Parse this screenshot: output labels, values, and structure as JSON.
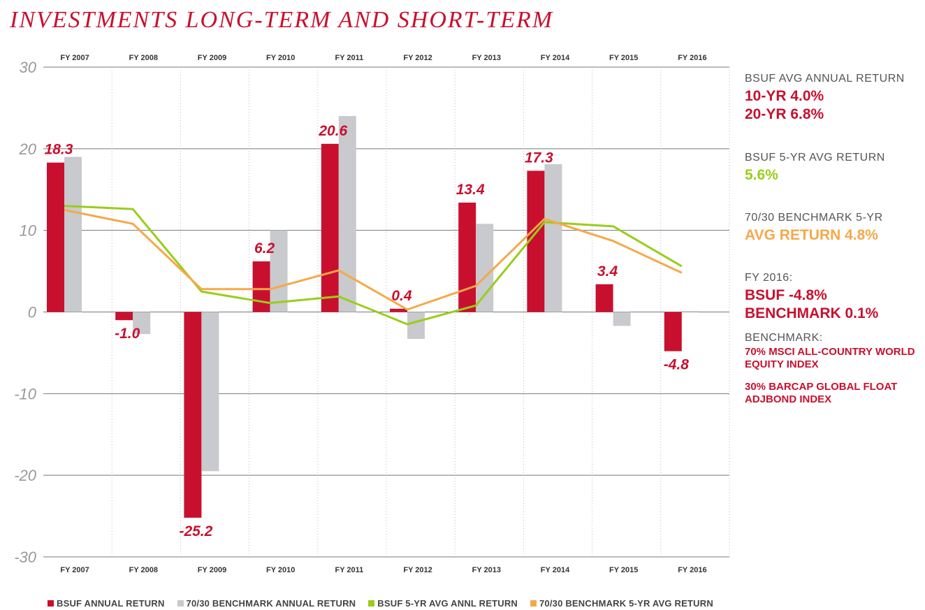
{
  "title": "INVESTMENTS LONG-TERM AND SHORT-TERM",
  "colors": {
    "bsuf": "#c8102e",
    "bench": "#c8cacd",
    "green": "#9acd1a",
    "orange": "#f6a849",
    "grid": "#777777"
  },
  "chart_data": {
    "type": "bar",
    "categories": [
      "FY 2007",
      "FY 2008",
      "FY 2009",
      "FY 2010",
      "FY 2011",
      "FY 2012",
      "FY 2013",
      "FY 2014",
      "FY 2015",
      "FY 2016"
    ],
    "ylim": [
      -30,
      30
    ],
    "yticks": [
      "30",
      "20",
      "10",
      "0",
      "-10",
      "-20",
      "-30"
    ],
    "ytick_values": [
      30,
      20,
      10,
      0,
      -10,
      -20,
      -30
    ],
    "series": [
      {
        "name": "BSUF ANNUAL RETURN",
        "kind": "bar",
        "values": [
          18.3,
          -1.0,
          -25.2,
          6.2,
          20.6,
          0.4,
          13.4,
          17.3,
          3.4,
          -4.8
        ],
        "labels": [
          "18.3",
          "-1.0",
          "-25.2",
          "6.2",
          "20.6",
          "0.4",
          "13.4",
          "17.3",
          "3.4",
          "-4.8"
        ]
      },
      {
        "name": "70/30 BENCHMARK ANNUAL RETURN",
        "kind": "bar",
        "values": [
          19.0,
          -2.7,
          -19.5,
          10.0,
          24.0,
          -3.3,
          10.8,
          18.1,
          -1.7,
          0.1
        ]
      },
      {
        "name": "BSUF 5-YR AVG ANNL RETURN",
        "kind": "line",
        "values": [
          13.0,
          12.6,
          2.5,
          1.1,
          1.9,
          -1.5,
          0.8,
          11.0,
          10.5,
          5.6
        ]
      },
      {
        "name": "70/30 BENCHMARK 5-YR AVG RETURN",
        "kind": "line",
        "values": [
          12.5,
          10.8,
          2.8,
          2.8,
          5.1,
          0.3,
          3.2,
          11.4,
          8.7,
          4.8
        ]
      }
    ]
  },
  "side": {
    "avg_hdr": "BSUF AVG ANNUAL RETURN",
    "ten_yr": "10-YR  4.0%",
    "twenty_yr": "20-YR  6.8%",
    "five_hdr": "BSUF 5-YR AVG RETURN",
    "five_val": "5.6%",
    "bench_hdr": "70/30 BENCHMARK 5-YR",
    "bench_val": "AVG RETURN  4.8%",
    "fy_hdr": "FY 2016:",
    "fy_bsuf": "BSUF  -4.8%",
    "fy_bench": "BENCHMARK  0.1%",
    "bm_hdr": "BENCHMARK:",
    "bm_1": "70% MSCI ALL-COUNTRY WORLD EQUITY INDEX",
    "bm_2": "30% BARCAP GLOBAL FLOAT ADJBOND INDEX"
  },
  "legend": [
    {
      "label": "BSUF ANNUAL RETURN",
      "color": "#c8102e"
    },
    {
      "label": "70/30 BENCHMARK ANNUAL RETURN",
      "color": "#c8cacd"
    },
    {
      "label": "BSUF 5-YR AVG ANNL RETURN",
      "color": "#9acd1a"
    },
    {
      "label": "70/30 BENCHMARK 5-YR AVG RETURN",
      "color": "#f6a849"
    }
  ]
}
